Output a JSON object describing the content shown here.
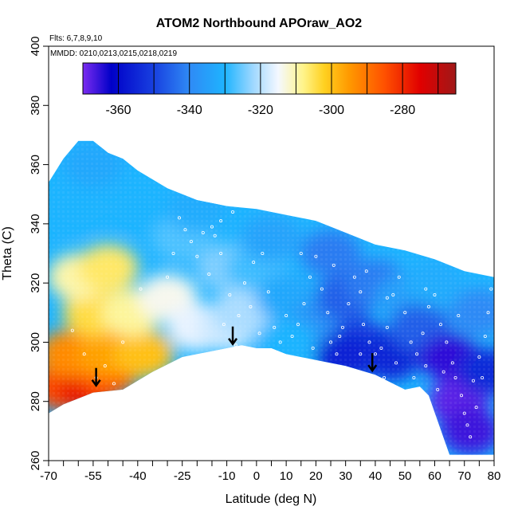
{
  "chart_data": {
    "type": "heatmap",
    "title": "ATOM2 Northbound APOraw_AO2",
    "annotations": {
      "flights": "Flts: 6,7,8,9,10",
      "dates": "MMDD: 0210,0213,0215,0218,0219"
    },
    "xlabel": "Latitude (deg N)",
    "ylabel": "Theta (C)",
    "xlim": [
      -70,
      80
    ],
    "ylim": [
      260,
      400
    ],
    "x_ticks": [
      -70,
      -55,
      -40,
      -25,
      -10,
      0,
      10,
      20,
      30,
      40,
      50,
      60,
      70,
      80
    ],
    "x_tick_labels": [
      "-70",
      "-55",
      "-40",
      "-25",
      "-10",
      "0",
      "10",
      "20",
      "30",
      "40",
      "50",
      "60",
      "70",
      "80"
    ],
    "x_minor_ticks": [
      -65,
      -60,
      -50,
      -45,
      -35,
      -30,
      -20,
      -15,
      -5,
      5,
      15,
      25,
      35,
      45,
      55,
      65,
      75
    ],
    "y_ticks": [
      260,
      280,
      300,
      320,
      340,
      360,
      380,
      400
    ],
    "y_tick_labels": [
      "260",
      "280",
      "300",
      "320",
      "340",
      "360",
      "380",
      "400"
    ],
    "colorbar": {
      "range": [
        -370,
        -265
      ],
      "ticks": [
        -360,
        -340,
        -320,
        -300,
        -280
      ],
      "tick_labels": [
        "-360",
        "-340",
        "-320",
        "-300",
        "-280"
      ],
      "stops": [
        {
          "value": -370,
          "color": "#7b2cf0"
        },
        {
          "value": -362,
          "color": "#0000c8"
        },
        {
          "value": -350,
          "color": "#1840e0"
        },
        {
          "value": -340,
          "color": "#2f8af5"
        },
        {
          "value": -330,
          "color": "#1eb4ff"
        },
        {
          "value": -322,
          "color": "#a0d8ff"
        },
        {
          "value": -315,
          "color": "#f4f8ff"
        },
        {
          "value": -308,
          "color": "#fff48a"
        },
        {
          "value": -302,
          "color": "#ffd020"
        },
        {
          "value": -295,
          "color": "#ff9900"
        },
        {
          "value": -285,
          "color": "#ff5000"
        },
        {
          "value": -275,
          "color": "#e00000"
        },
        {
          "value": -265,
          "color": "#a01818"
        }
      ]
    },
    "coverage": {
      "top_boundary": [
        [
          -70,
          354
        ],
        [
          -65,
          362
        ],
        [
          -60,
          368
        ],
        [
          -55,
          368
        ],
        [
          -50,
          364
        ],
        [
          -45,
          362
        ],
        [
          -40,
          358
        ],
        [
          -30,
          352
        ],
        [
          -20,
          348
        ],
        [
          -10,
          346
        ],
        [
          0,
          345
        ],
        [
          10,
          343
        ],
        [
          20,
          341
        ],
        [
          30,
          337
        ],
        [
          40,
          333
        ],
        [
          50,
          331
        ],
        [
          60,
          328
        ],
        [
          70,
          324
        ],
        [
          80,
          322
        ]
      ],
      "bottom_boundary": [
        [
          80,
          262
        ],
        [
          75,
          262
        ],
        [
          70,
          262
        ],
        [
          65,
          262
        ],
        [
          58,
          282
        ],
        [
          55,
          285
        ],
        [
          50,
          284
        ],
        [
          40,
          289
        ],
        [
          30,
          292
        ],
        [
          20,
          294
        ],
        [
          10,
          296
        ],
        [
          5,
          298
        ],
        [
          0,
          298
        ],
        [
          -5,
          299
        ],
        [
          -15,
          297
        ],
        [
          -25,
          295
        ],
        [
          -35,
          290
        ],
        [
          -45,
          284
        ],
        [
          -55,
          283
        ],
        [
          -60,
          281
        ],
        [
          -65,
          279
        ],
        [
          -70,
          276
        ]
      ]
    },
    "field": [
      {
        "lat": -65,
        "theta": 285,
        "value": -284
      },
      {
        "lat": -57,
        "theta": 285,
        "value": -278
      },
      {
        "lat": -50,
        "theta": 290,
        "value": -286
      },
      {
        "lat": -63,
        "theta": 296,
        "value": -293
      },
      {
        "lat": -50,
        "theta": 296,
        "value": -296
      },
      {
        "lat": -38,
        "theta": 296,
        "value": -300
      },
      {
        "lat": -55,
        "theta": 310,
        "value": -304
      },
      {
        "lat": -42,
        "theta": 310,
        "value": -309
      },
      {
        "lat": -60,
        "theta": 322,
        "value": -310
      },
      {
        "lat": -50,
        "theta": 325,
        "value": -306
      },
      {
        "lat": -30,
        "theta": 315,
        "value": -314
      },
      {
        "lat": -20,
        "theta": 305,
        "value": -316
      },
      {
        "lat": -10,
        "theta": 305,
        "value": -318
      },
      {
        "lat": -5,
        "theta": 310,
        "value": -321
      },
      {
        "lat": -10,
        "theta": 325,
        "value": -324
      },
      {
        "lat": 0,
        "theta": 325,
        "value": -328
      },
      {
        "lat": -25,
        "theta": 335,
        "value": -327
      },
      {
        "lat": -40,
        "theta": 345,
        "value": -330
      },
      {
        "lat": -60,
        "theta": 345,
        "value": -330
      },
      {
        "lat": -55,
        "theta": 360,
        "value": -333
      },
      {
        "lat": -20,
        "theta": 345,
        "value": -332
      },
      {
        "lat": 5,
        "theta": 335,
        "value": -334
      },
      {
        "lat": 10,
        "theta": 315,
        "value": -333
      },
      {
        "lat": 20,
        "theta": 305,
        "value": -338
      },
      {
        "lat": 25,
        "theta": 330,
        "value": -342
      },
      {
        "lat": 30,
        "theta": 315,
        "value": -346
      },
      {
        "lat": 35,
        "theta": 300,
        "value": -350
      },
      {
        "lat": 30,
        "theta": 295,
        "value": -356
      },
      {
        "lat": 45,
        "theta": 295,
        "value": -355
      },
      {
        "lat": 40,
        "theta": 320,
        "value": -342
      },
      {
        "lat": 50,
        "theta": 315,
        "value": -335
      },
      {
        "lat": 55,
        "theta": 305,
        "value": -346
      },
      {
        "lat": 65,
        "theta": 295,
        "value": -365
      },
      {
        "lat": 68,
        "theta": 280,
        "value": -368
      },
      {
        "lat": 72,
        "theta": 270,
        "value": -366
      },
      {
        "lat": 78,
        "theta": 290,
        "value": -354
      },
      {
        "lat": 75,
        "theta": 310,
        "value": -340
      },
      {
        "lat": 60,
        "theta": 320,
        "value": -332
      },
      {
        "lat": 10,
        "theta": 300,
        "value": -330
      }
    ],
    "sample_points": [
      [
        -54,
        288
      ],
      [
        -51,
        292
      ],
      [
        -48,
        286
      ],
      [
        -58,
        296
      ],
      [
        -45,
        300
      ],
      [
        -62,
        304
      ],
      [
        -39,
        318
      ],
      [
        -30,
        322
      ],
      [
        -28,
        330
      ],
      [
        -22,
        334
      ],
      [
        -18,
        337
      ],
      [
        -15,
        339
      ],
      [
        -12,
        341
      ],
      [
        -8,
        344
      ],
      [
        -14,
        336
      ],
      [
        -12,
        330
      ],
      [
        -9,
        316
      ],
      [
        -6,
        309
      ],
      [
        -2,
        312
      ],
      [
        -4,
        320
      ],
      [
        -1,
        327
      ],
      [
        2,
        330
      ],
      [
        4,
        317
      ],
      [
        6,
        305
      ],
      [
        8,
        300
      ],
      [
        12,
        302
      ],
      [
        14,
        306
      ],
      [
        16,
        313
      ],
      [
        18,
        322
      ],
      [
        20,
        329
      ],
      [
        22,
        318
      ],
      [
        24,
        310
      ],
      [
        25,
        300
      ],
      [
        27,
        296
      ],
      [
        29,
        305
      ],
      [
        31,
        313
      ],
      [
        33,
        322
      ],
      [
        35,
        317
      ],
      [
        36,
        306
      ],
      [
        38,
        300
      ],
      [
        40,
        296
      ],
      [
        39,
        291
      ],
      [
        42,
        298
      ],
      [
        44,
        305
      ],
      [
        46,
        316
      ],
      [
        48,
        322
      ],
      [
        50,
        310
      ],
      [
        52,
        300
      ],
      [
        54,
        296
      ],
      [
        56,
        303
      ],
      [
        58,
        312
      ],
      [
        60,
        316
      ],
      [
        62,
        306
      ],
      [
        64,
        300
      ],
      [
        66,
        293
      ],
      [
        67,
        288
      ],
      [
        69,
        282
      ],
      [
        70,
        276
      ],
      [
        71,
        272
      ],
      [
        73,
        287
      ],
      [
        75,
        295
      ],
      [
        77,
        302
      ],
      [
        78,
        310
      ],
      [
        79,
        318
      ],
      [
        76,
        288
      ],
      [
        74,
        278
      ],
      [
        72,
        268
      ],
      [
        63,
        290
      ],
      [
        61,
        284
      ],
      [
        57,
        292
      ],
      [
        53,
        288
      ],
      [
        47,
        293
      ],
      [
        43,
        288
      ],
      [
        35,
        296
      ],
      [
        28,
        302
      ],
      [
        19,
        298
      ],
      [
        10,
        309
      ],
      [
        1,
        303
      ],
      [
        -7,
        299
      ],
      [
        -11,
        306
      ],
      [
        -16,
        323
      ],
      [
        -20,
        329
      ],
      [
        -24,
        338
      ],
      [
        -26,
        342
      ],
      [
        15,
        330
      ],
      [
        26,
        326
      ],
      [
        37,
        324
      ],
      [
        44,
        315
      ],
      [
        57,
        318
      ],
      [
        68,
        309
      ]
    ],
    "arrows": [
      {
        "lat": -54,
        "theta": 287
      },
      {
        "lat": -8,
        "theta": 301
      },
      {
        "lat": 39,
        "theta": 292
      }
    ]
  }
}
